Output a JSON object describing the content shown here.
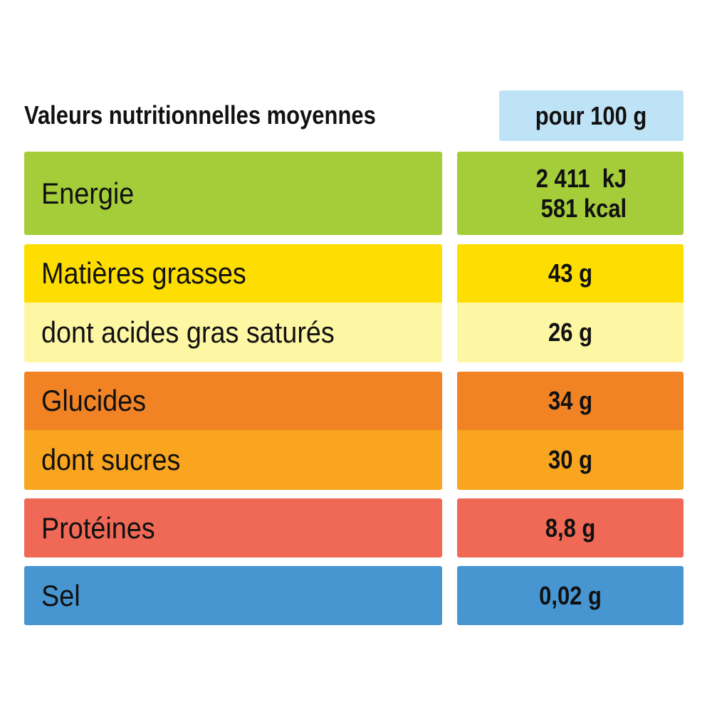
{
  "table": {
    "title": "Valeurs nutritionnelles moyennes",
    "unit_header": "pour 100 g",
    "energy": {
      "label": "Energie",
      "kj": "2 411  kJ",
      "kcal": "581 kcal",
      "color": "#a5cd3a"
    },
    "rows": [
      {
        "label": "Matières grasses",
        "value": "43 g",
        "color": "#fedd00"
      },
      {
        "label": "dont acides gras saturés",
        "value": "26 g",
        "color": "#fdf7a4"
      },
      {
        "label": "Glucides",
        "value": "34 g",
        "color": "#f28325"
      },
      {
        "label": "dont sucres",
        "value": "30 g",
        "color": "#f9a51f"
      },
      {
        "label": "Protéines",
        "value": "8,8 g",
        "color": "#f06956"
      },
      {
        "label": "Sel",
        "value": "0,02 g",
        "color": "#4796d2"
      }
    ],
    "header_unit_color": "#bfe3f6"
  }
}
